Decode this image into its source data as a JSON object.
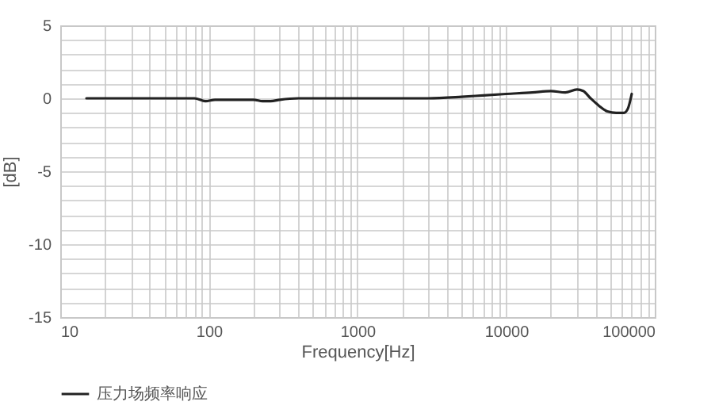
{
  "chart_data": {
    "type": "line",
    "xlabel": "Frequency[Hz]",
    "ylabel": "[dB]",
    "log": "x",
    "grid": true,
    "legend": "bottom",
    "marker": "none",
    "line_style": "solid",
    "xlim": [
      10,
      100000
    ],
    "ylim": [
      -15,
      5
    ],
    "xticks": [
      10,
      {
        "value": 20,
        "label": null
      },
      {
        "value": 30,
        "label": null
      },
      {
        "value": 40,
        "label": null
      },
      {
        "value": 50,
        "label": null
      },
      {
        "value": 60,
        "label": null
      },
      {
        "value": 70,
        "label": null
      },
      {
        "value": 80,
        "label": null
      },
      {
        "value": 90,
        "label": null
      },
      100,
      {
        "value": 200,
        "label": null
      },
      {
        "value": 300,
        "label": null
      },
      {
        "value": 400,
        "label": null
      },
      {
        "value": 500,
        "label": null
      },
      {
        "value": 600,
        "label": null
      },
      {
        "value": 700,
        "label": null
      },
      {
        "value": 800,
        "label": null
      },
      {
        "value": 900,
        "label": null
      },
      1000,
      {
        "value": 2000,
        "label": null
      },
      {
        "value": 3000,
        "label": null
      },
      {
        "value": 4000,
        "label": null
      },
      {
        "value": 5000,
        "label": null
      },
      {
        "value": 6000,
        "label": null
      },
      {
        "value": 7000,
        "label": null
      },
      {
        "value": 8000,
        "label": null
      },
      {
        "value": 9000,
        "label": null
      },
      10000,
      {
        "value": 20000,
        "label": null
      },
      {
        "value": 30000,
        "label": null
      },
      {
        "value": 40000,
        "label": null
      },
      {
        "value": 50000,
        "label": null
      },
      {
        "value": 60000,
        "label": null
      },
      {
        "value": 70000,
        "label": null
      },
      {
        "value": 80000,
        "label": null
      },
      {
        "value": 90000,
        "label": null
      },
      100000
    ],
    "yticks": [
      -15,
      {
        "value": -14,
        "label": null
      },
      {
        "value": -13,
        "label": null
      },
      {
        "value": -12,
        "label": null
      },
      {
        "value": -11,
        "label": null
      },
      -10,
      {
        "value": -9,
        "label": null
      },
      {
        "value": -8,
        "label": null
      },
      {
        "value": -7,
        "label": null
      },
      {
        "value": -6,
        "label": null
      },
      -5,
      {
        "value": -4,
        "label": null
      },
      {
        "value": -3,
        "label": null
      },
      {
        "value": -2,
        "label": null
      },
      {
        "value": -1,
        "label": null
      },
      0,
      {
        "value": 1,
        "label": null
      },
      {
        "value": 2,
        "label": null
      },
      {
        "value": 3,
        "label": null
      },
      {
        "value": 4,
        "label": null
      },
      5
    ],
    "x": [
      15,
      50,
      80,
      95,
      110,
      150,
      200,
      230,
      260,
      300,
      400,
      500,
      1000,
      2000,
      3000,
      5000,
      7000,
      10000,
      15000,
      20000,
      25000,
      30000,
      33000,
      37000,
      42000,
      48000,
      55000,
      62000,
      66000,
      70000
    ],
    "series": [
      {
        "name": "压力场频率响应",
        "color": "#222222",
        "values": [
          0,
          0,
          0,
          -0.2,
          -0.1,
          -0.1,
          -0.1,
          -0.2,
          -0.2,
          -0.1,
          0,
          0,
          0,
          0,
          0,
          0.1,
          0.2,
          0.3,
          0.4,
          0.5,
          0.4,
          0.6,
          0.5,
          0,
          -0.5,
          -0.9,
          -1.0,
          -1.0,
          -0.7,
          0.3
        ]
      }
    ]
  }
}
